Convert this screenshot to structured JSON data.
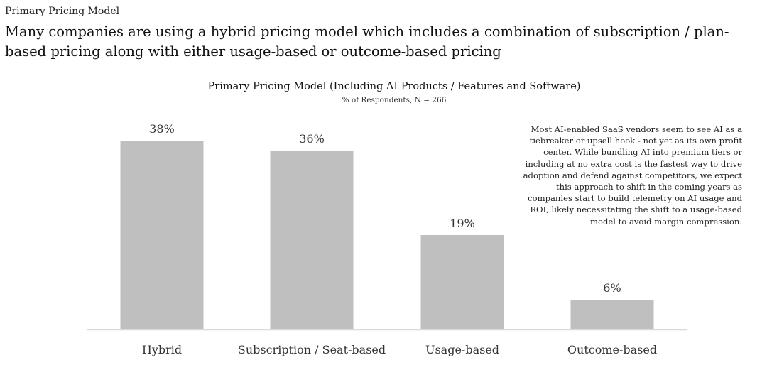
{
  "header": {
    "eyebrow": "Primary Pricing Model",
    "headline": "Many companies are using a hybrid pricing model which includes a combination of subscription / plan-based pricing along with either usage-based or outcome-based pricing"
  },
  "annotation": {
    "text": "Most AI-enabled SaaS vendors seem to see AI as a tiebreaker or upsell hook - not yet as its own profit center. While bundling AI into premium tiers or including at no extra cost is the fastest way to drive adoption and defend against competitors, we expect this approach to shift in the coming years as companies start to build telemetry on AI usage and ROI, likely necessitating the shift to a usage-based model to avoid margin compression."
  },
  "chart_data": {
    "type": "bar",
    "title": "Primary Pricing Model (Including AI Products / Features and Software)",
    "subtitle": "% of Respondents, N = 266",
    "categories": [
      "Hybrid",
      "Subscription / Seat-based",
      "Usage-based",
      "Outcome-based"
    ],
    "values": [
      38,
      36,
      19,
      6
    ],
    "value_labels": [
      "38%",
      "36%",
      "19%",
      "6%"
    ],
    "bar_color": "#bfbfbf",
    "ylim": [
      0,
      40
    ],
    "grid": false,
    "legend": "none"
  }
}
